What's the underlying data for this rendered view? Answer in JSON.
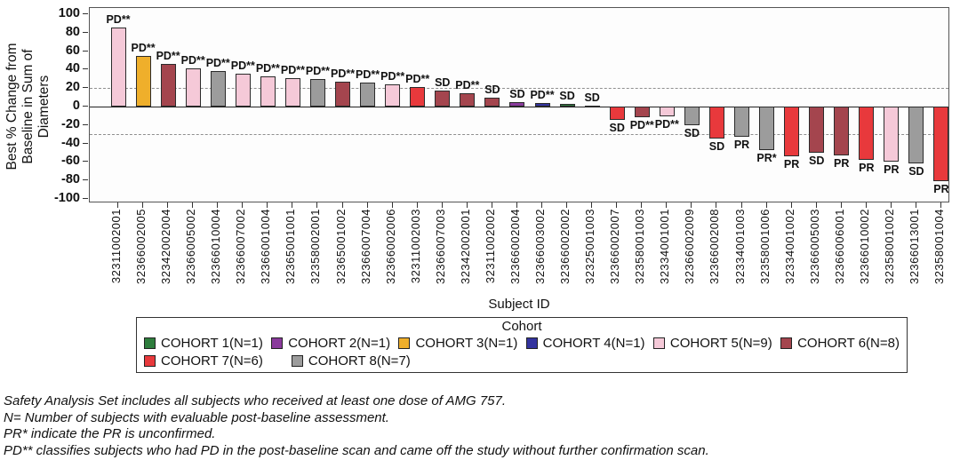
{
  "chart_data": {
    "type": "bar",
    "title": "",
    "xlabel": "Subject ID",
    "ylabel": "Best % Change from Baseline in Sum of Diameters",
    "ylabel_lines": [
      "Best % Change from",
      "Baseline in Sum of",
      "Diameters"
    ],
    "ylim": [
      -100,
      100
    ],
    "yticks": [
      100,
      80,
      60,
      40,
      20,
      0,
      -20,
      -40,
      -60,
      -80,
      -100
    ],
    "reference_lines": [
      20,
      -30
    ],
    "grid": "reference lines only, dashed",
    "legend_position": "bottom",
    "legend_title": "Cohort",
    "cohorts": [
      {
        "id": 1,
        "label": "COHORT 1(N=1)",
        "color": "#2e7d3d"
      },
      {
        "id": 2,
        "label": "COHORT 2(N=1)",
        "color": "#8a3a9c"
      },
      {
        "id": 3,
        "label": "COHORT 3(N=1)",
        "color": "#efaf2b"
      },
      {
        "id": 4,
        "label": "COHORT 4(N=1)",
        "color": "#33339e"
      },
      {
        "id": 5,
        "label": "COHORT 5(N=9)",
        "color": "#f5c9d8"
      },
      {
        "id": 6,
        "label": "COHORT 6(N=8)",
        "color": "#a4454e"
      },
      {
        "id": 7,
        "label": "COHORT 7(N=6)",
        "color": "#e8393c"
      },
      {
        "id": 8,
        "label": "COHORT 8(N=7)",
        "color": "#9c9c9c"
      }
    ],
    "bars": [
      {
        "subject": "32311002001",
        "value": 86,
        "response": "PD**",
        "cohort": 5
      },
      {
        "subject": "32366002005",
        "value": 55,
        "response": "PD**",
        "cohort": 3
      },
      {
        "subject": "32342002004",
        "value": 46,
        "response": "PD**",
        "cohort": 6
      },
      {
        "subject": "32366005002",
        "value": 41,
        "response": "PD**",
        "cohort": 5
      },
      {
        "subject": "32366010004",
        "value": 38,
        "response": "PD**",
        "cohort": 8
      },
      {
        "subject": "32366007002",
        "value": 36,
        "response": "PD**",
        "cohort": 5
      },
      {
        "subject": "32366001004",
        "value": 33,
        "response": "PD**",
        "cohort": 5
      },
      {
        "subject": "32365001001",
        "value": 31,
        "response": "PD**",
        "cohort": 5
      },
      {
        "subject": "32358002001",
        "value": 30,
        "response": "PD**",
        "cohort": 8
      },
      {
        "subject": "32365001002",
        "value": 27,
        "response": "PD**",
        "cohort": 6
      },
      {
        "subject": "32366007004",
        "value": 26,
        "response": "PD**",
        "cohort": 8
      },
      {
        "subject": "32366002006",
        "value": 24,
        "response": "PD**",
        "cohort": 5
      },
      {
        "subject": "32311002003",
        "value": 21,
        "response": "PD**",
        "cohort": 7
      },
      {
        "subject": "32366007003",
        "value": 17,
        "response": "SD",
        "cohort": 6
      },
      {
        "subject": "32342002001",
        "value": 14,
        "response": "PD**",
        "cohort": 6
      },
      {
        "subject": "32311002002",
        "value": 10,
        "response": "SD",
        "cohort": 6
      },
      {
        "subject": "32366002004",
        "value": 5,
        "response": "SD",
        "cohort": 2
      },
      {
        "subject": "32366003002",
        "value": 4,
        "response": "PD**",
        "cohort": 4
      },
      {
        "subject": "32366002002",
        "value": 3,
        "response": "SD",
        "cohort": 1
      },
      {
        "subject": "32325001003",
        "value": 1,
        "response": "SD",
        "cohort": 5
      },
      {
        "subject": "32366002007",
        "value": -14,
        "response": "SD",
        "cohort": 7
      },
      {
        "subject": "32358001003",
        "value": -12,
        "response": "PD**",
        "cohort": 6
      },
      {
        "subject": "32334001001",
        "value": -11,
        "response": "PD**",
        "cohort": 5
      },
      {
        "subject": "32366002009",
        "value": -20,
        "response": "SD",
        "cohort": 8
      },
      {
        "subject": "32366002008",
        "value": -35,
        "response": "SD",
        "cohort": 7
      },
      {
        "subject": "32334001003",
        "value": -33,
        "response": "PR",
        "cohort": 8
      },
      {
        "subject": "32358001006",
        "value": -47,
        "response": "PR*",
        "cohort": 8
      },
      {
        "subject": "32334001002",
        "value": -54,
        "response": "PR",
        "cohort": 7
      },
      {
        "subject": "32366005003",
        "value": -50,
        "response": "SD",
        "cohort": 6
      },
      {
        "subject": "32366006001",
        "value": -53,
        "response": "PR",
        "cohort": 6
      },
      {
        "subject": "32366010002",
        "value": -58,
        "response": "PR",
        "cohort": 7
      },
      {
        "subject": "32358001002",
        "value": -60,
        "response": "PR",
        "cohort": 5
      },
      {
        "subject": "32366013001",
        "value": -62,
        "response": "SD",
        "cohort": 8
      },
      {
        "subject": "32358001004",
        "value": -81,
        "response": "PR",
        "cohort": 7
      }
    ]
  },
  "footnotes": [
    "Safety Analysis Set includes all subjects who received at least one dose of AMG 757.",
    "N= Number of subjects with evaluable post-baseline assessment.",
    "PR* indicate the PR is unconfirmed.",
    "PD** classifies subjects who had PD in the post-baseline scan and came off the study without further confirmation scan."
  ]
}
